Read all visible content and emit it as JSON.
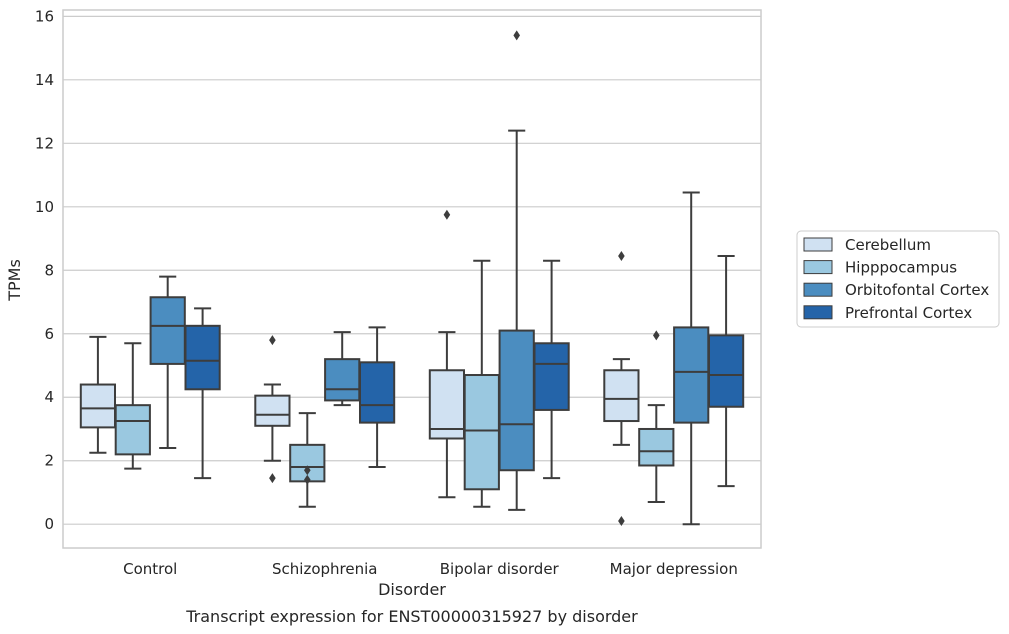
{
  "chart_data": {
    "type": "boxplot",
    "title": "",
    "caption": "Transcript expression for ENST00000315927 by disorder",
    "xlabel": "Disorder",
    "ylabel": "TPMs",
    "ylim": [
      -0.75,
      16.2
    ],
    "yticks": [
      0,
      2,
      4,
      6,
      8,
      10,
      12,
      14,
      16
    ],
    "grid": "horizontal",
    "legend_position": "right",
    "categories": [
      "Control",
      "Schizophrenia",
      "Bipolar disorder",
      "Major depression"
    ],
    "series": [
      {
        "name": "Cerebellum",
        "color": "#d0e1f2",
        "boxes": [
          {
            "whislo": 2.25,
            "q1": 3.05,
            "med": 3.65,
            "q3": 4.4,
            "whishi": 5.9,
            "fliers": []
          },
          {
            "whislo": 2.0,
            "q1": 3.1,
            "med": 3.45,
            "q3": 4.05,
            "whishi": 4.4,
            "fliers": [
              1.45,
              5.8
            ]
          },
          {
            "whislo": 0.85,
            "q1": 2.7,
            "med": 3.0,
            "q3": 4.85,
            "whishi": 6.05,
            "fliers": [
              9.75
            ]
          },
          {
            "whislo": 2.5,
            "q1": 3.25,
            "med": 3.95,
            "q3": 4.85,
            "whishi": 5.2,
            "fliers": [
              0.1,
              8.45
            ]
          }
        ]
      },
      {
        "name": "Hipppocampus",
        "color": "#9ac8e0",
        "boxes": [
          {
            "whislo": 1.75,
            "q1": 2.2,
            "med": 3.25,
            "q3": 3.75,
            "whishi": 5.7,
            "fliers": []
          },
          {
            "whislo": 0.55,
            "q1": 1.35,
            "med": 1.8,
            "q3": 2.5,
            "whishi": 3.5,
            "fliers": [
              1.4,
              1.7
            ]
          },
          {
            "whislo": 0.55,
            "q1": 1.1,
            "med": 2.95,
            "q3": 4.7,
            "whishi": 8.3,
            "fliers": []
          },
          {
            "whislo": 0.7,
            "q1": 1.85,
            "med": 2.3,
            "q3": 3.0,
            "whishi": 3.75,
            "fliers": [
              5.95
            ]
          }
        ]
      },
      {
        "name": "Orbitofontal Cortex",
        "color": "#4b8dc0",
        "boxes": [
          {
            "whislo": 2.4,
            "q1": 5.05,
            "med": 6.25,
            "q3": 7.15,
            "whishi": 7.8,
            "fliers": []
          },
          {
            "whislo": 3.75,
            "q1": 3.9,
            "med": 4.25,
            "q3": 5.2,
            "whishi": 6.05,
            "fliers": []
          },
          {
            "whislo": 0.45,
            "q1": 1.7,
            "med": 3.15,
            "q3": 6.1,
            "whishi": 12.4,
            "fliers": [
              15.4
            ]
          },
          {
            "whislo": 0.0,
            "q1": 3.2,
            "med": 4.8,
            "q3": 6.2,
            "whishi": 10.45,
            "fliers": []
          }
        ]
      },
      {
        "name": "Prefrontal Cortex",
        "color": "#2464a9",
        "boxes": [
          {
            "whislo": 1.45,
            "q1": 4.25,
            "med": 5.15,
            "q3": 6.25,
            "whishi": 6.8,
            "fliers": []
          },
          {
            "whislo": 1.8,
            "q1": 3.2,
            "med": 3.75,
            "q3": 5.1,
            "whishi": 6.2,
            "fliers": []
          },
          {
            "whislo": 1.45,
            "q1": 3.6,
            "med": 5.05,
            "q3": 5.7,
            "whishi": 8.3,
            "fliers": []
          },
          {
            "whislo": 1.2,
            "q1": 3.7,
            "med": 4.7,
            "q3": 5.95,
            "whishi": 8.45,
            "fliers": []
          }
        ]
      }
    ]
  }
}
